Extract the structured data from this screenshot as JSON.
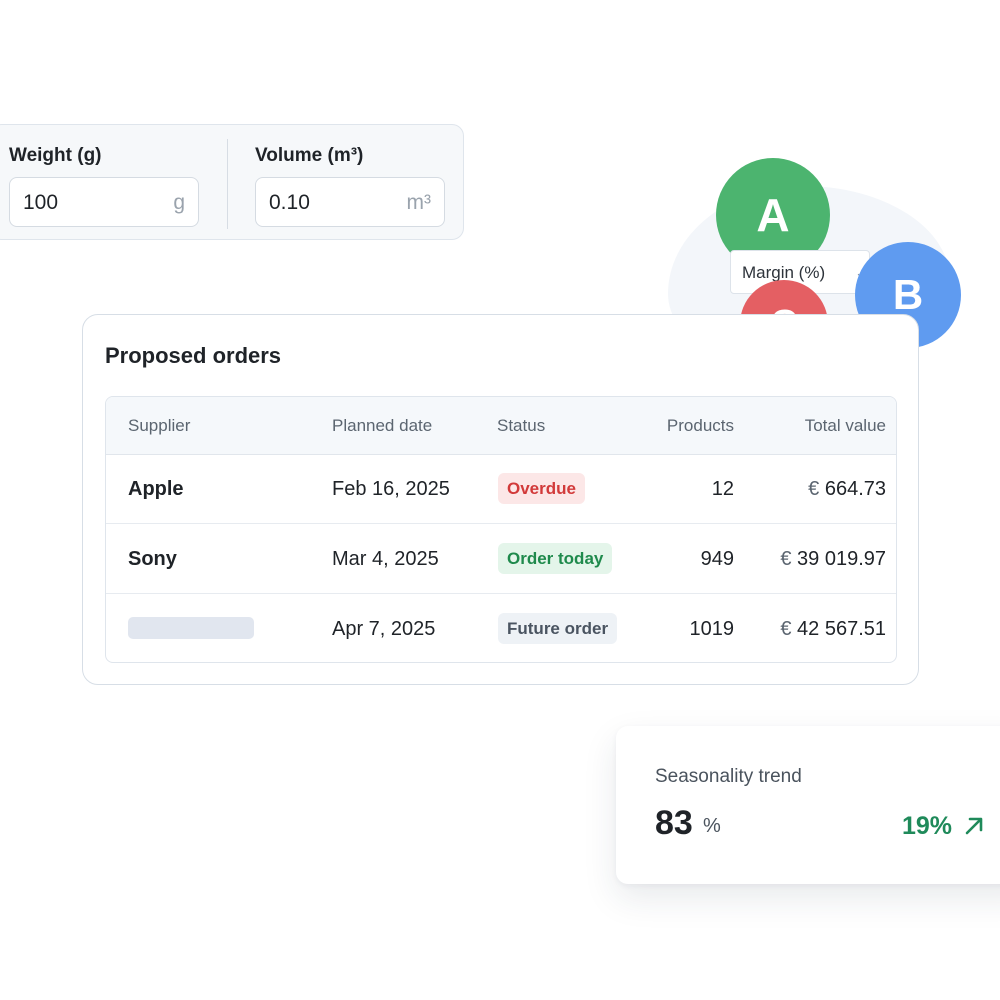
{
  "dimensions": {
    "weight": {
      "label": "Weight (g)",
      "value": "100",
      "unit": "g"
    },
    "volume": {
      "label": "Volume (m³)",
      "value": "0.10",
      "unit": "m³"
    }
  },
  "segments": {
    "circles": [
      {
        "letter": "A",
        "color": "#4cb46f"
      },
      {
        "letter": "B",
        "color": "#5f9bf0"
      },
      {
        "letter": "C",
        "color": "#e45f63"
      }
    ],
    "select": {
      "value": "Margin (%)",
      "icon": "chevron-down-icon"
    }
  },
  "orders": {
    "title": "Proposed orders",
    "columns": [
      "Supplier",
      "Planned date",
      "Status",
      "Products",
      "Total value"
    ],
    "rows": [
      {
        "supplier": "Apple",
        "date": "Feb 16, 2025",
        "status": "Overdue",
        "status_kind": "overdue",
        "products": "12",
        "currency": "€",
        "total": "664.73"
      },
      {
        "supplier": "Sony",
        "date": "Mar 4, 2025",
        "status": "Order today",
        "status_kind": "today",
        "products": "949",
        "currency": "€",
        "total": "39 019.97"
      },
      {
        "supplier": "",
        "date": "Apr 7, 2025",
        "status": "Future order",
        "status_kind": "future",
        "products": "1019",
        "currency": "€",
        "total": "42 567.51"
      }
    ],
    "status_colors": {
      "overdue": {
        "text": "#d23a3a",
        "bg": "#fce7e7"
      },
      "today": {
        "text": "#1f8a4c",
        "bg": "#e4f5ea"
      },
      "future": {
        "text": "#4a5461",
        "bg": "#eef2f6"
      }
    }
  },
  "seasonality": {
    "label": "Seasonality trend",
    "value": "83",
    "unit": "%",
    "change": "19%",
    "change_color": "#1f8a5a",
    "icon": "arrow-up-right-icon"
  }
}
